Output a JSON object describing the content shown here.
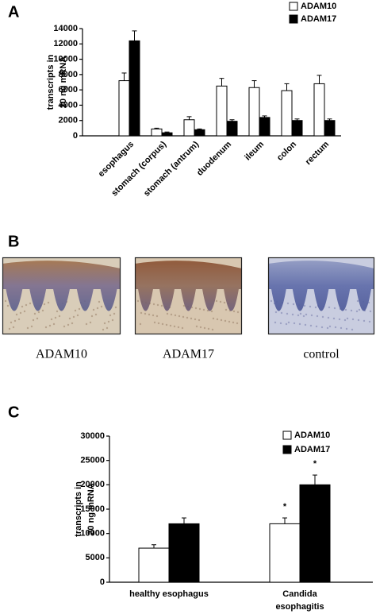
{
  "chart_data": [
    {
      "type": "bar",
      "panel_label": "A",
      "ylabel": [
        "transcripts in",
        "20 ng mRNA"
      ],
      "categories": [
        "esophagus",
        "stomach (corpus)",
        "stomach (antrum)",
        "duodenum",
        "ileum",
        "colon",
        "rectum"
      ],
      "series": [
        {
          "name": "ADAM10",
          "color": "#ffffff",
          "values": [
            7200,
            900,
            2100,
            6500,
            6300,
            5900,
            6800
          ],
          "errors": [
            1000,
            100,
            400,
            1000,
            900,
            900,
            1100
          ]
        },
        {
          "name": "ADAM17",
          "color": "#000000",
          "values": [
            12400,
            400,
            800,
            1900,
            2400,
            2000,
            2000
          ],
          "errors": [
            1300,
            100,
            100,
            200,
            200,
            200,
            200
          ]
        }
      ],
      "ylim": [
        0,
        14000
      ],
      "yticks": [
        0,
        2000,
        4000,
        6000,
        8000,
        10000,
        12000,
        14000
      ],
      "grid": false,
      "legend": "upper right"
    },
    {
      "type": "bar",
      "panel_label": "C",
      "ylabel": [
        "transcripts in",
        "20 ng mRNA"
      ],
      "categories": [
        [
          "healthy esophagus"
        ],
        [
          "Candida",
          "esophagitis"
        ]
      ],
      "series": [
        {
          "name": "ADAM10",
          "color": "#ffffff",
          "values": [
            7000,
            12000
          ],
          "errors": [
            700,
            1200
          ]
        },
        {
          "name": "ADAM17",
          "color": "#000000",
          "values": [
            12000,
            20000
          ],
          "errors": [
            1200,
            2000
          ]
        }
      ],
      "annotations": [
        "*",
        "*"
      ],
      "ylim": [
        0,
        30000
      ],
      "yticks": [
        0,
        5000,
        10000,
        15000,
        20000,
        25000,
        30000
      ],
      "grid": false,
      "legend": "upper right"
    }
  ],
  "images": {
    "panel_label": "B",
    "captions": [
      "ADAM10",
      "ADAM17",
      "control"
    ]
  }
}
